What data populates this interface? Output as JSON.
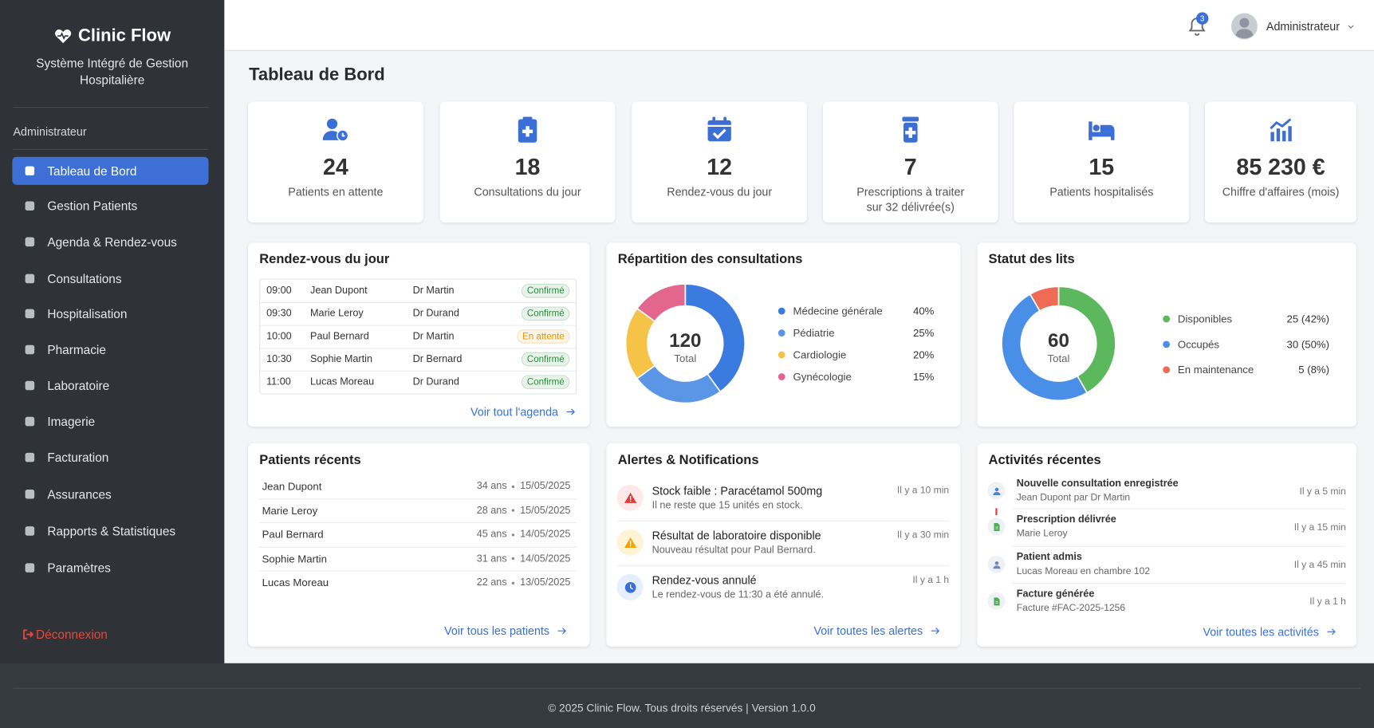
{
  "sidebar": {
    "brand": "Clinic Flow",
    "subtitle": "Système Intégré de Gestion Hospitalière",
    "role": "Administrateur",
    "menu": [
      "Tableau de Bord",
      "Gestion Patients",
      "Agenda & Rendez-vous",
      "Consultations",
      "Hospitalisation",
      "Pharmacie",
      "Laboratoire",
      "Imagerie",
      "Facturation",
      "Assurances",
      "Rapports & Statistiques",
      "Paramètres"
    ],
    "logout": "Déconnexion"
  },
  "header": {
    "notifications": "3",
    "user": "Administrateur"
  },
  "page_title": "Tableau de Bord",
  "stats": [
    {
      "value": "24",
      "label": "Patients en attente"
    },
    {
      "value": "18",
      "label": "Consultations du jour"
    },
    {
      "value": "12",
      "label": "Rendez-vous du jour"
    },
    {
      "value": "7",
      "label": "Prescriptions à traiter",
      "sublabel": "sur 32 délivrée(s)"
    },
    {
      "value": "15",
      "label": "Patients hospitalisés"
    },
    {
      "value": "85 230 €",
      "label": "Chiffre d'affaires (mois)"
    }
  ],
  "appointments": {
    "title": "Rendez-vous du jour",
    "rows": [
      {
        "time": "09:00",
        "patient": "Jean Dupont",
        "doctor": "Dr Martin",
        "status": "Confirmé",
        "color": "#2e8b3e"
      },
      {
        "time": "09:30",
        "patient": "Marie Leroy",
        "doctor": "Dr Durand",
        "status": "Confirmé",
        "color": "#2e8b3e"
      },
      {
        "time": "10:00",
        "patient": "Paul Bernard",
        "doctor": "Dr Martin",
        "status": "En attente",
        "color": "#e69500"
      },
      {
        "time": "10:30",
        "patient": "Sophie Martin",
        "doctor": "Dr Bernard",
        "status": "Confirmé",
        "color": "#2e8b3e"
      },
      {
        "time": "11:00",
        "patient": "Lucas Moreau",
        "doctor": "Dr Durand",
        "status": "Confirmé",
        "color": "#2e8b3e"
      }
    ],
    "link": "Voir tout l'agenda"
  },
  "chart_data": [
    {
      "type": "pie",
      "title": "Répartition des consultations",
      "center_value": "120",
      "center_label": "Total",
      "categories": [
        "Médecine générale",
        "Pédiatrie",
        "Cardiologie",
        "Gynécologie"
      ],
      "values": [
        40,
        25,
        20,
        15
      ],
      "value_labels": [
        "40%",
        "25%",
        "20%",
        "15%"
      ],
      "colors": [
        "#3b7be0",
        "#5a95e6",
        "#f6c349",
        "#e2668e"
      ]
    },
    {
      "type": "pie",
      "title": "Statut des lits",
      "center_value": "60",
      "center_label": "Total",
      "categories": [
        "Disponibles",
        "Occupés",
        "En maintenance"
      ],
      "values": [
        25,
        30,
        5
      ],
      "value_labels": [
        "25 (42%)",
        "30 (50%)",
        "5 (8%)"
      ],
      "colors": [
        "#5cb85c",
        "#4a8fe7",
        "#ef6b55"
      ]
    }
  ],
  "recent_patients": {
    "title": "Patients récents",
    "rows": [
      {
        "name": "Jean Dupont",
        "age": "34 ans",
        "date": "15/05/2025"
      },
      {
        "name": "Marie Leroy",
        "age": "28 ans",
        "date": "15/05/2025"
      },
      {
        "name": "Paul Bernard",
        "age": "45 ans",
        "date": "14/05/2025"
      },
      {
        "name": "Sophie Martin",
        "age": "31 ans",
        "date": "14/05/2025"
      },
      {
        "name": "Lucas Moreau",
        "age": "22 ans",
        "date": "13/05/2025"
      }
    ],
    "link": "Voir tous les patients"
  },
  "alerts": {
    "title": "Alertes & Notifications",
    "items": [
      {
        "title": "Stock faible : Paracétamol 500mg",
        "text": "Il ne reste que 15 unités en stock.",
        "time": "Il y a 10 min"
      },
      {
        "title": "Résultat de laboratoire disponible",
        "text": "Nouveau résultat pour Paul Bernard.",
        "time": "Il y a 30 min"
      },
      {
        "title": "Rendez-vous annulé",
        "text": "Le rendez-vous de 11:30 a été annulé.",
        "time": "Il y a 1 h"
      }
    ],
    "link": "Voir toutes les alertes"
  },
  "activities": {
    "title": "Activités récentes",
    "items": [
      {
        "title": "Nouvelle consultation enregistrée",
        "text": "Jean Dupont par Dr Martin",
        "time": "Il y a 5 min"
      },
      {
        "title": "Prescription délivrée",
        "text": "Marie Leroy",
        "time": "Il y a 15 min"
      },
      {
        "title": "Patient admis",
        "text": "Lucas Moreau en chambre 102",
        "time": "Il y a 45 min"
      },
      {
        "title": "Facture générée",
        "text": "Facture #FAC-2025-1256",
        "time": "Il y a 1 h"
      }
    ],
    "link": "Voir toutes les activités"
  },
  "footer": "© 2025 Clinic Flow. Tous droits réservés | Version 1.0.0"
}
